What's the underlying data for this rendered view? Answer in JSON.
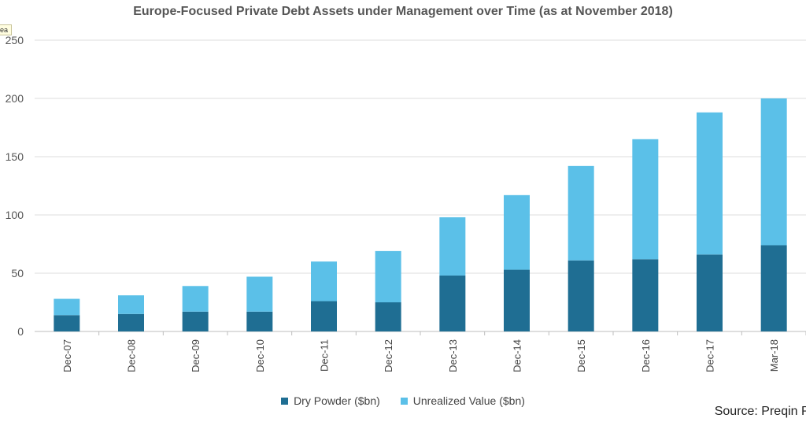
{
  "chart_data": {
    "type": "bar",
    "stacked": true,
    "title": "Europe-Focused Private Debt Assets under Management over Time (as at November 2018)",
    "categories": [
      "Dec-07",
      "Dec-08",
      "Dec-09",
      "Dec-10",
      "Dec-11",
      "Dec-12",
      "Dec-13",
      "Dec-14",
      "Dec-15",
      "Dec-16",
      "Dec-17",
      "Mar-18"
    ],
    "series": [
      {
        "name": "Dry Powder ($bn)",
        "color": "#1f6e93",
        "values": [
          14,
          15,
          17,
          17,
          26,
          25,
          48,
          53,
          61,
          62,
          66,
          74
        ]
      },
      {
        "name": "Unrealized Value ($bn)",
        "color": "#5bc0e8",
        "values": [
          14,
          16,
          22,
          30,
          34,
          44,
          50,
          64,
          81,
          103,
          122,
          126
        ]
      }
    ],
    "ylim": [
      0,
      250
    ],
    "yticks": [
      0,
      50,
      100,
      150,
      200,
      250
    ],
    "grid": true,
    "legend_position": "bottom"
  },
  "tooltip_text": "ea",
  "source": "Source: Preqin Pr"
}
